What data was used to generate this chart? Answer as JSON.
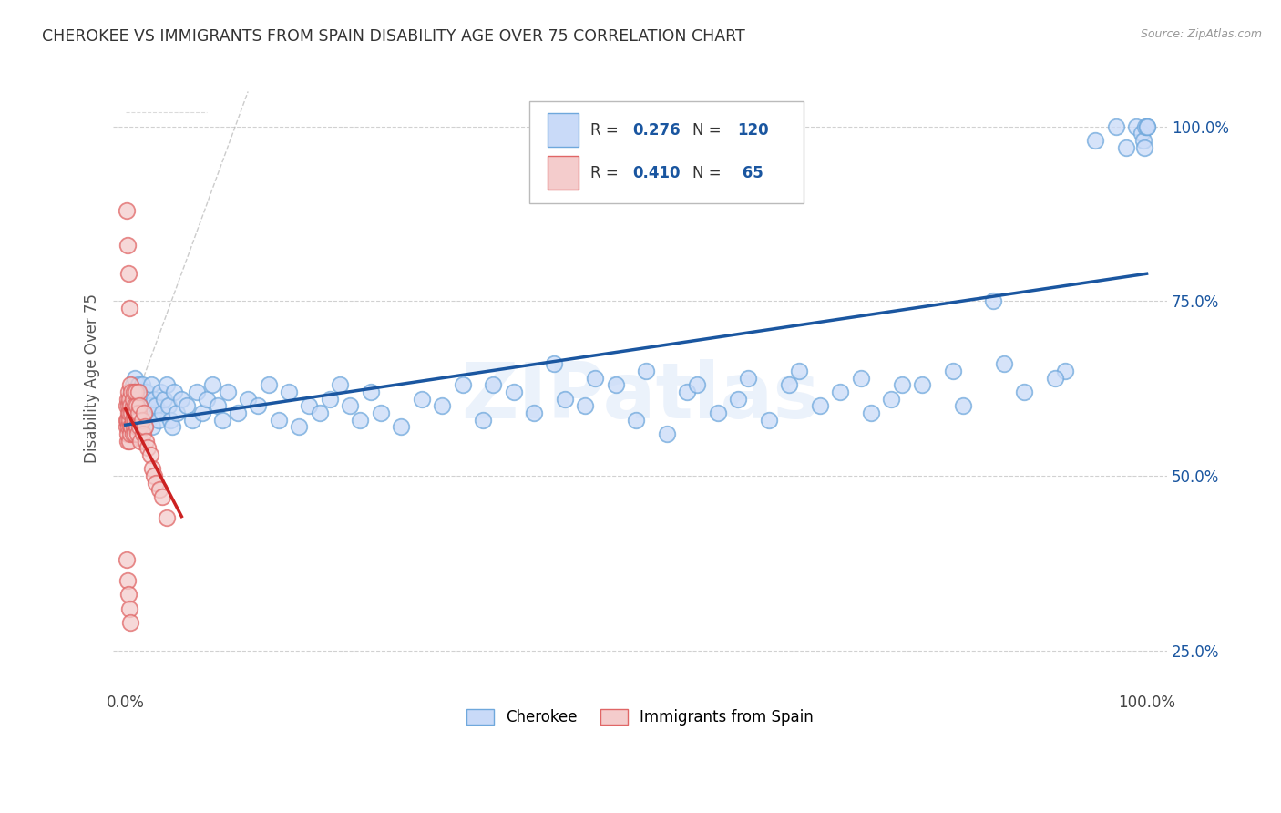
{
  "title": "CHEROKEE VS IMMIGRANTS FROM SPAIN DISABILITY AGE OVER 75 CORRELATION CHART",
  "source": "Source: ZipAtlas.com",
  "ylabel": "Disability Age Over 75",
  "watermark": "ZIPatlas",
  "cherokee_label": "Cherokee",
  "spain_label": "Immigrants from Spain",
  "cherokee_R": "0.276",
  "cherokee_N": "120",
  "spain_R": "0.410",
  "spain_N": "65",
  "cherokee_fill": "#c9daf8",
  "cherokee_edge": "#6fa8dc",
  "cherokee_line": "#1a56a0",
  "spain_fill": "#f4cccc",
  "spain_edge": "#e06666",
  "spain_line": "#cc2222",
  "bg_color": "#ffffff",
  "grid_color": "#cccccc",
  "title_color": "#333333",
  "ytick_color": "#1a56a0",
  "xmin": 0.0,
  "xmax": 1.0,
  "ymin": 0.2,
  "ymax": 1.08,
  "ref_line_color": "#cccccc",
  "cherokee_x": [
    0.003,
    0.004,
    0.005,
    0.006,
    0.007,
    0.007,
    0.008,
    0.008,
    0.009,
    0.009,
    0.01,
    0.01,
    0.011,
    0.011,
    0.012,
    0.012,
    0.013,
    0.013,
    0.014,
    0.014,
    0.015,
    0.015,
    0.016,
    0.016,
    0.017,
    0.018,
    0.019,
    0.02,
    0.021,
    0.022,
    0.023,
    0.024,
    0.025,
    0.026,
    0.027,
    0.028,
    0.03,
    0.032,
    0.034,
    0.036,
    0.038,
    0.04,
    0.042,
    0.044,
    0.046,
    0.048,
    0.05,
    0.055,
    0.06,
    0.065,
    0.07,
    0.075,
    0.08,
    0.085,
    0.09,
    0.095,
    0.1,
    0.11,
    0.12,
    0.13,
    0.14,
    0.15,
    0.16,
    0.17,
    0.18,
    0.19,
    0.2,
    0.21,
    0.22,
    0.23,
    0.24,
    0.25,
    0.27,
    0.29,
    0.31,
    0.33,
    0.35,
    0.38,
    0.4,
    0.43,
    0.45,
    0.48,
    0.5,
    0.53,
    0.55,
    0.58,
    0.6,
    0.63,
    0.65,
    0.68,
    0.7,
    0.73,
    0.75,
    0.78,
    0.82,
    0.85,
    0.88,
    0.92,
    0.95,
    0.97,
    0.98,
    0.99,
    0.995,
    0.997,
    0.998,
    0.999,
    1.0,
    1.0,
    0.36,
    0.42,
    0.46,
    0.51,
    0.56,
    0.61,
    0.66,
    0.72,
    0.76,
    0.81,
    0.86,
    0.91
  ],
  "cherokee_y": [
    0.58,
    0.6,
    0.57,
    0.62,
    0.59,
    0.63,
    0.61,
    0.58,
    0.6,
    0.64,
    0.57,
    0.62,
    0.59,
    0.61,
    0.58,
    0.6,
    0.63,
    0.57,
    0.59,
    0.62,
    0.6,
    0.58,
    0.61,
    0.63,
    0.59,
    0.6,
    0.57,
    0.62,
    0.59,
    0.61,
    0.58,
    0.6,
    0.63,
    0.57,
    0.59,
    0.61,
    0.6,
    0.58,
    0.62,
    0.59,
    0.61,
    0.63,
    0.6,
    0.58,
    0.57,
    0.62,
    0.59,
    0.61,
    0.6,
    0.58,
    0.62,
    0.59,
    0.61,
    0.63,
    0.6,
    0.58,
    0.62,
    0.59,
    0.61,
    0.6,
    0.63,
    0.58,
    0.62,
    0.57,
    0.6,
    0.59,
    0.61,
    0.63,
    0.6,
    0.58,
    0.62,
    0.59,
    0.57,
    0.61,
    0.6,
    0.63,
    0.58,
    0.62,
    0.59,
    0.61,
    0.6,
    0.63,
    0.58,
    0.56,
    0.62,
    0.59,
    0.61,
    0.58,
    0.63,
    0.6,
    0.62,
    0.59,
    0.61,
    0.63,
    0.6,
    0.75,
    0.62,
    0.65,
    0.98,
    1.0,
    0.97,
    1.0,
    0.99,
    0.98,
    0.97,
    1.0,
    1.0,
    1.0,
    0.63,
    0.66,
    0.64,
    0.65,
    0.63,
    0.64,
    0.65,
    0.64,
    0.63,
    0.65,
    0.66,
    0.64
  ],
  "spain_x": [
    0.001,
    0.001,
    0.001,
    0.002,
    0.002,
    0.002,
    0.002,
    0.003,
    0.003,
    0.003,
    0.003,
    0.004,
    0.004,
    0.004,
    0.004,
    0.005,
    0.005,
    0.005,
    0.005,
    0.006,
    0.006,
    0.006,
    0.007,
    0.007,
    0.007,
    0.007,
    0.008,
    0.008,
    0.008,
    0.009,
    0.009,
    0.009,
    0.01,
    0.01,
    0.011,
    0.011,
    0.012,
    0.012,
    0.013,
    0.013,
    0.014,
    0.014,
    0.015,
    0.016,
    0.017,
    0.018,
    0.019,
    0.02,
    0.022,
    0.024,
    0.026,
    0.028,
    0.03,
    0.033,
    0.036,
    0.04,
    0.001,
    0.002,
    0.003,
    0.004,
    0.001,
    0.002,
    0.003,
    0.004,
    0.005
  ],
  "spain_y": [
    0.57,
    0.6,
    0.58,
    0.55,
    0.58,
    0.61,
    0.56,
    0.59,
    0.62,
    0.57,
    0.6,
    0.58,
    0.61,
    0.55,
    0.59,
    0.57,
    0.6,
    0.63,
    0.56,
    0.59,
    0.62,
    0.57,
    0.6,
    0.58,
    0.61,
    0.56,
    0.59,
    0.62,
    0.57,
    0.6,
    0.58,
    0.56,
    0.59,
    0.62,
    0.57,
    0.6,
    0.58,
    0.56,
    0.59,
    0.62,
    0.57,
    0.6,
    0.55,
    0.58,
    0.56,
    0.59,
    0.57,
    0.55,
    0.54,
    0.53,
    0.51,
    0.5,
    0.49,
    0.48,
    0.47,
    0.44,
    0.88,
    0.83,
    0.79,
    0.74,
    0.38,
    0.35,
    0.33,
    0.31,
    0.29
  ]
}
